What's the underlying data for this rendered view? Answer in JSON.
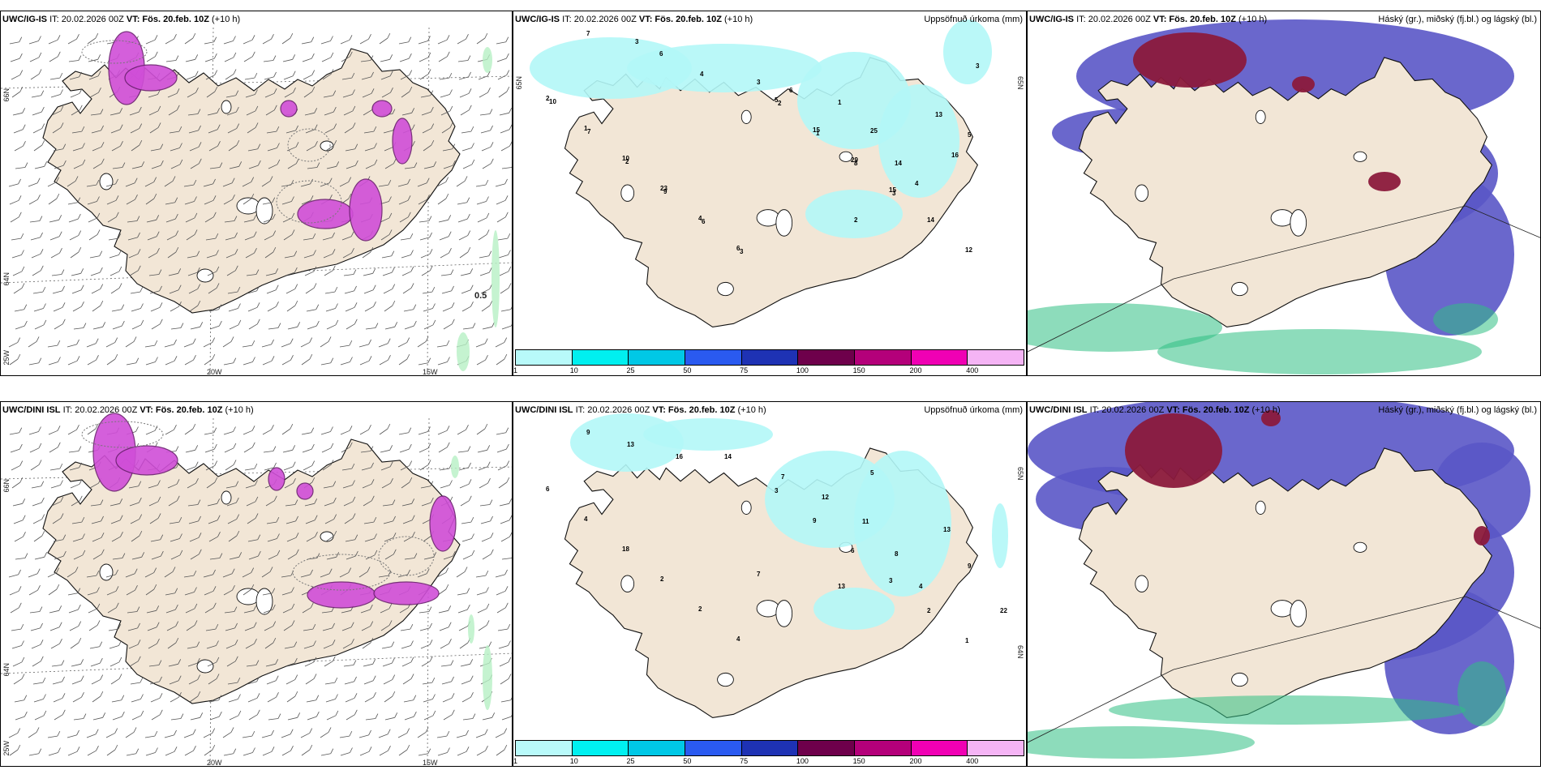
{
  "top": {
    "wind": {
      "model": "UWC/IG-IS",
      "it": "IT: 20.02.2026 00Z",
      "vt": "VT: Fös. 20.feb. 10Z",
      "lead": "(+10 h)",
      "lat_labels": [
        "66N",
        "64N",
        "25W"
      ],
      "lon_labels": [
        "20W",
        "15W"
      ],
      "value_label": "0.5"
    },
    "precip": {
      "model": "UWC/IG-IS",
      "it": "IT: 20.02.2026 00Z",
      "vt": "VT: Fös. 20.feb. 10Z",
      "lead": "(+10 h)",
      "right_title": "Uppsöfnuð úrkoma (mm)",
      "lat_labels": [
        "65N",
        "64N"
      ]
    },
    "cloud": {
      "model": "UWC/IG-IS",
      "it": "IT: 20.02.2026 00Z",
      "vt": "VT: Fös. 20.feb. 10Z",
      "lead": "(+10 h)",
      "right_title": "Háský (gr.), miðský (fj.bl.) og lágský (bl.)"
    }
  },
  "bottom": {
    "wind": {
      "model": "UWC/DINI ISL",
      "it": "IT: 20.02.2026 00Z",
      "vt": "VT: Fös. 20.feb. 10Z",
      "lead": "(+10 h)",
      "lat_labels": [
        "66N",
        "64N",
        "25W"
      ],
      "lon_labels": [
        "20W",
        "15W"
      ]
    },
    "precip": {
      "model": "UWC/DINI ISL",
      "it": "IT: 20.02.2026 00Z",
      "vt": "VT: Fös. 20.feb. 10Z",
      "lead": "(+10 h)",
      "right_title": "Uppsöfnuð úrkoma (mm)",
      "lat_labels": [
        "65N",
        "64N"
      ]
    },
    "cloud": {
      "model": "UWC/DINI ISL",
      "it": "IT: 20.02.2026 00Z",
      "vt": "VT: Fös. 20.feb. 10Z",
      "lead": "(+10 h)",
      "right_title": "Háský (gr.), miðský (fj.bl.) og lágský (bl.)"
    }
  },
  "colorbar": {
    "ticks": [
      "1",
      "10",
      "25",
      "50",
      "75",
      "100",
      "150",
      "200",
      "400"
    ],
    "colors": [
      "#b8fafa",
      "#00f0f0",
      "#00c8e6",
      "#2a5af0",
      "#1e32b4",
      "#6e004b",
      "#b4007a",
      "#f000b4",
      "#f5b4f5"
    ]
  },
  "precip_labels_top": [
    "7",
    "3",
    "6",
    "4",
    "3",
    "6",
    "1",
    "25",
    "14",
    "13",
    "16",
    "5",
    "4",
    "3",
    "2",
    "2",
    "1",
    "10",
    "23",
    "4",
    "6",
    "5",
    "15",
    "29",
    "15",
    "14",
    "12",
    "10",
    "7",
    "2",
    "9",
    "6",
    "3",
    "2",
    "1",
    "8",
    "3"
  ],
  "precip_labels_bottom": [
    "9",
    "13",
    "16",
    "14",
    "7",
    "12",
    "11",
    "8",
    "4",
    "13",
    "9",
    "22",
    "13",
    "7",
    "5",
    "6",
    "4",
    "18",
    "2",
    "2",
    "4",
    "3",
    "9",
    "6",
    "3",
    "2",
    "1"
  ],
  "palette": {
    "land": "#f2e6d6",
    "coast": "#111111",
    "wind_purple": "#d04ed8",
    "dark_purple": "#6a1f6e",
    "light_cyan": "#b2f7f7",
    "cyan": "#55e4ec",
    "blue": "#5a57c6",
    "maroon": "#8b1a3c",
    "green": "#2fbf84"
  }
}
